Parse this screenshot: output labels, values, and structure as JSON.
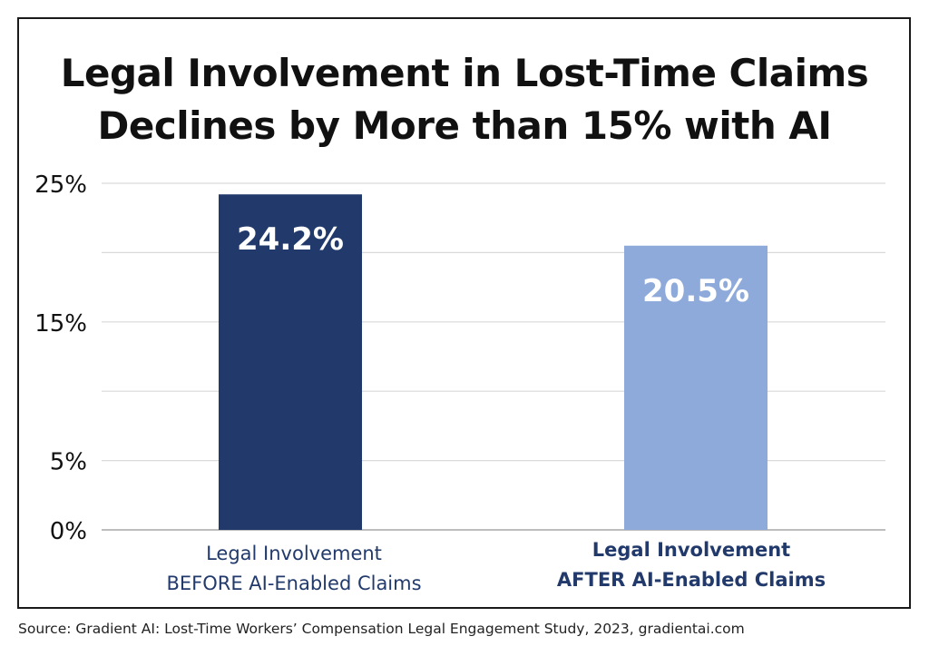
{
  "title": {
    "line1": "Legal Involvement in Lost-Time Claims",
    "line2": "Declines by More than 15% with AI"
  },
  "source": "Source: Gradient AI: Lost-Time Workers’ Compensation Legal Engagement Study, 2023, gradientai.com",
  "categories": [
    {
      "line1": "Legal Involvement",
      "line2": "BEFORE AI-Enabled Claims"
    },
    {
      "line1": "Legal Involvement",
      "line2": "AFTER  AI-Enabled Claims"
    }
  ],
  "chart_data": {
    "type": "bar",
    "title": "Legal Involvement in Lost-Time Claims Declines by More than 15% with AI",
    "categories": [
      "Legal Involvement BEFORE AI-Enabled Claims",
      "Legal Involvement AFTER  AI-Enabled Claims"
    ],
    "values": [
      24.2,
      20.5
    ],
    "value_labels": [
      "24.2%",
      "20.5%"
    ],
    "colors": [
      "#213a6b",
      "#8eaadb"
    ],
    "ylim": [
      0,
      25
    ],
    "yticks": [
      0,
      5,
      15,
      25
    ],
    "ytick_labels": [
      "0%",
      "5%",
      "15%",
      "25%"
    ],
    "gridlines": [
      0,
      5,
      10,
      15,
      20,
      25
    ],
    "grid": true,
    "xlabel": "",
    "ylabel": ""
  }
}
